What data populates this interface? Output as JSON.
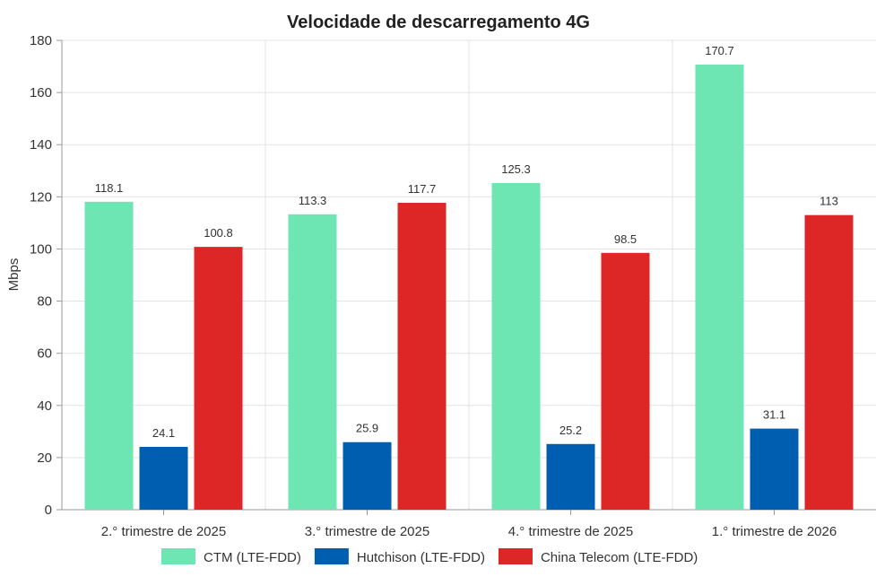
{
  "chart_data": {
    "type": "bar",
    "title": "Velocidade de descarregamento 4G",
    "xlabel": "",
    "ylabel": "Mbps",
    "ylim": [
      0,
      180
    ],
    "yticks": [
      0,
      20,
      40,
      60,
      80,
      100,
      120,
      140,
      160,
      180
    ],
    "categories": [
      "2.°  trimestre de 2025",
      "3.°  trimestre de 2025",
      "4.°  trimestre de 2025",
      "1.°  trimestre de 2026"
    ],
    "series": [
      {
        "name": "CTM (LTE-FDD)",
        "color": "#6de6b4",
        "values": [
          118.1,
          113.3,
          125.3,
          170.7
        ],
        "labels": [
          "118.1",
          "113.3",
          "125.3",
          "170.7"
        ]
      },
      {
        "name": "Hutchison (LTE-FDD)",
        "color": "#005eb0",
        "values": [
          24.1,
          25.9,
          25.2,
          31.1
        ],
        "labels": [
          "24.1",
          "25.9",
          "25.2",
          "31.1"
        ]
      },
      {
        "name": "China Telecom (LTE-FDD)",
        "color": "#dd2626",
        "values": [
          100.8,
          117.7,
          98.5,
          113
        ],
        "labels": [
          "100.8",
          "117.7",
          "98.5",
          "113"
        ]
      }
    ],
    "grid": true,
    "legend_position": "bottom"
  }
}
